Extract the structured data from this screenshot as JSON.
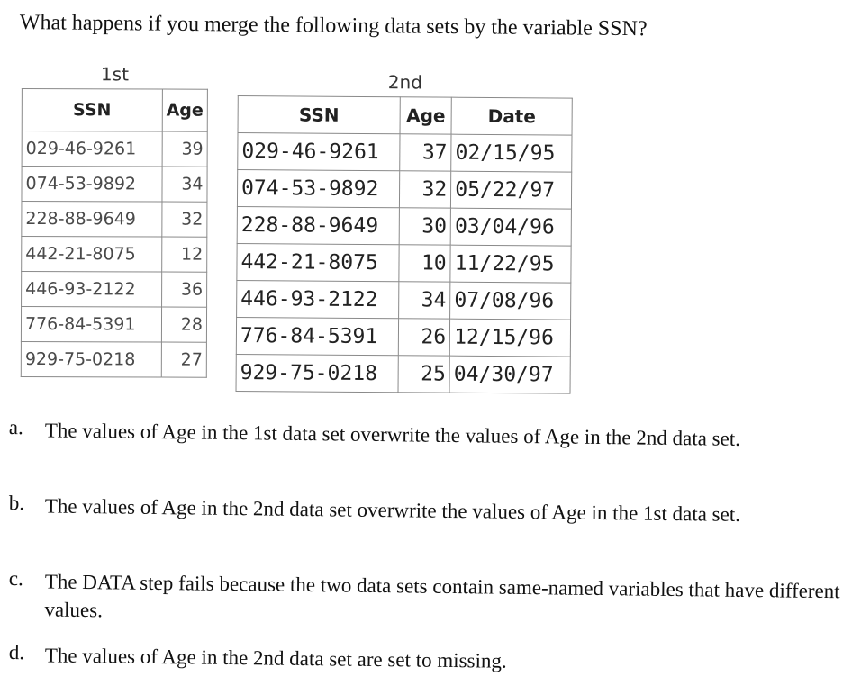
{
  "question": "What happens if you merge the following data sets by the variable SSN?",
  "table1": {
    "caption": "1st",
    "headers": [
      "SSN",
      "Age"
    ],
    "rows": [
      [
        "029-46-9261",
        "39"
      ],
      [
        "074-53-9892",
        "34"
      ],
      [
        "228-88-9649",
        "32"
      ],
      [
        "442-21-8075",
        "12"
      ],
      [
        "446-93-2122",
        "36"
      ],
      [
        "776-84-5391",
        "28"
      ],
      [
        "929-75-0218",
        "27"
      ]
    ]
  },
  "table2": {
    "caption": "2nd",
    "headers": [
      "SSN",
      "Age",
      "Date"
    ],
    "rows": [
      [
        "029-46-9261",
        "37",
        "02/15/95"
      ],
      [
        "074-53-9892",
        "32",
        "05/22/97"
      ],
      [
        "228-88-9649",
        "30",
        "03/04/96"
      ],
      [
        "442-21-8075",
        "10",
        "11/22/95"
      ],
      [
        "446-93-2122",
        "34",
        "07/08/96"
      ],
      [
        "776-84-5391",
        "26",
        "12/15/96"
      ],
      [
        "929-75-0218",
        "25",
        "04/30/97"
      ]
    ]
  },
  "options": [
    {
      "letter": "a.",
      "text": "The values of Age in the 1st data set overwrite the values of Age in the 2nd data set."
    },
    {
      "letter": "b.",
      "text": "The values of Age in the 2nd data set overwrite the values of Age in the 1st data set."
    },
    {
      "letter": "c.",
      "text": "The DATA step fails because the two data sets contain same-named variables that have different values."
    },
    {
      "letter": "d.",
      "text": "The values of Age in the 2nd data set are set to missing."
    }
  ]
}
